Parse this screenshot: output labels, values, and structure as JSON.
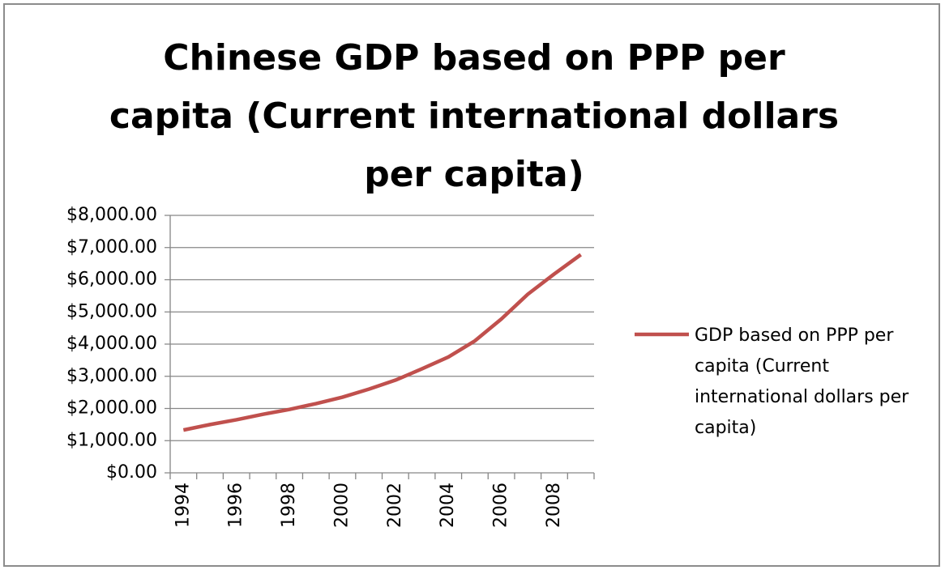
{
  "chart_data": {
    "type": "line",
    "title": "Chinese GDP based on PPP per capita (Current international dollars per capita)",
    "categories": [
      "1994",
      null,
      "1996",
      null,
      "1998",
      null,
      "2000",
      null,
      "2002",
      null,
      "2004",
      null,
      "2006",
      null,
      "2008",
      null
    ],
    "series": [
      {
        "name": "GDP based on PPP per capita (Current international dollars per capita)",
        "color": "#c0504d",
        "values": [
          1330,
          1500,
          1650,
          1820,
          1970,
          2150,
          2350,
          2600,
          2880,
          3230,
          3600,
          4100,
          4780,
          5550,
          6180,
          6780
        ]
      }
    ],
    "ylim": [
      0,
      8000
    ],
    "yticks": [
      {
        "value": 0,
        "label": "$0.00"
      },
      {
        "value": 1000,
        "label": "$1,000.00"
      },
      {
        "value": 2000,
        "label": "$2,000.00"
      },
      {
        "value": 3000,
        "label": "$3,000.00"
      },
      {
        "value": 4000,
        "label": "$4,000.00"
      },
      {
        "value": 5000,
        "label": "$5,000.00"
      },
      {
        "value": 6000,
        "label": "$6,000.00"
      },
      {
        "value": 7000,
        "label": "$7,000.00"
      },
      {
        "value": 8000,
        "label": "$8,000.00"
      }
    ],
    "grid": true,
    "legend": "right"
  }
}
